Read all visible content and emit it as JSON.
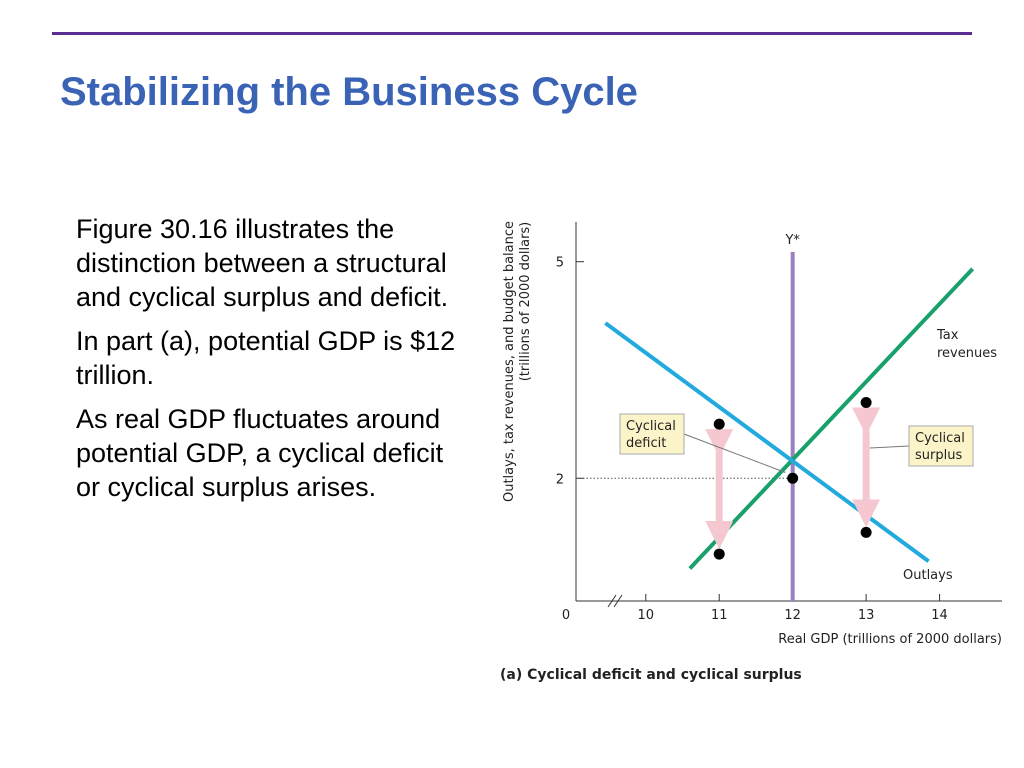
{
  "slide": {
    "title": "Stabilizing the Business Cycle",
    "paragraphs": [
      "Figure 30.16 illustrates the distinction between a structural and cyclical surplus and deficit.",
      "In part (a), potential GDP is $12 trillion.",
      "As real GDP fluctuates around potential GDP, a cyclical deficit or cyclical surplus arises."
    ]
  },
  "colors": {
    "title": "#3a63b5",
    "rule": "#5b2c91",
    "outlays": "#22a9dd",
    "tax_revenues": "#1aa06a",
    "potential_gdp": "#9a80bf",
    "arrow": "#f5c7d0",
    "box": "#fbf4c9"
  },
  "chart_data": {
    "type": "line",
    "caption": "(a) Cyclical deficit and cyclical surplus",
    "xlabel": "Real GDP (trillions of 2000 dollars)",
    "ylabel_line1": "Outlays, tax revenues, and budget balance",
    "ylabel_line2": "(trillions of 2000 dollars)",
    "x_origin_label": "0",
    "x_ticks": [
      {
        "value": 10,
        "label": "10"
      },
      {
        "value": 11,
        "label": "11"
      },
      {
        "value": 12,
        "label": "12"
      },
      {
        "value": 13,
        "label": "13"
      },
      {
        "value": 14,
        "label": "14"
      }
    ],
    "y_ticks": [
      {
        "value": 2,
        "label": "2"
      },
      {
        "value": 5,
        "label": "5"
      }
    ],
    "xlim": [
      9.05,
      14.85
    ],
    "ylim": [
      0.3,
      5.55
    ],
    "axis_break": true,
    "series": [
      {
        "name": "Tax revenues",
        "key": "tax",
        "x": [
          10.6,
          14.45
        ],
        "y": [
          0.75,
          4.9
        ]
      },
      {
        "name": "Outlays",
        "key": "outlays",
        "x": [
          9.45,
          13.85
        ],
        "y": [
          4.15,
          0.85
        ]
      }
    ],
    "vline": {
      "x": 12,
      "label": "Y*"
    },
    "reference_dotted": {
      "y": 2,
      "x_to": 12
    },
    "points": [
      {
        "x": 11,
        "y": 2.75
      },
      {
        "x": 11,
        "y": 0.95
      },
      {
        "x": 12,
        "y": 2.0
      },
      {
        "x": 13,
        "y": 3.05
      },
      {
        "x": 13,
        "y": 1.25
      }
    ],
    "arrows": [
      {
        "x": 11,
        "from": 2.68,
        "to": 1.02
      },
      {
        "x": 13,
        "from": 2.98,
        "to": 1.32
      }
    ],
    "annotations": [
      {
        "key": "deficit",
        "lines": [
          "Cyclical",
          "deficit"
        ]
      },
      {
        "key": "surplus",
        "lines": [
          "Cyclical",
          "surplus"
        ]
      }
    ],
    "series_labels": {
      "tax": [
        "Tax",
        "revenues"
      ],
      "outlays": [
        "Outlays"
      ]
    }
  }
}
